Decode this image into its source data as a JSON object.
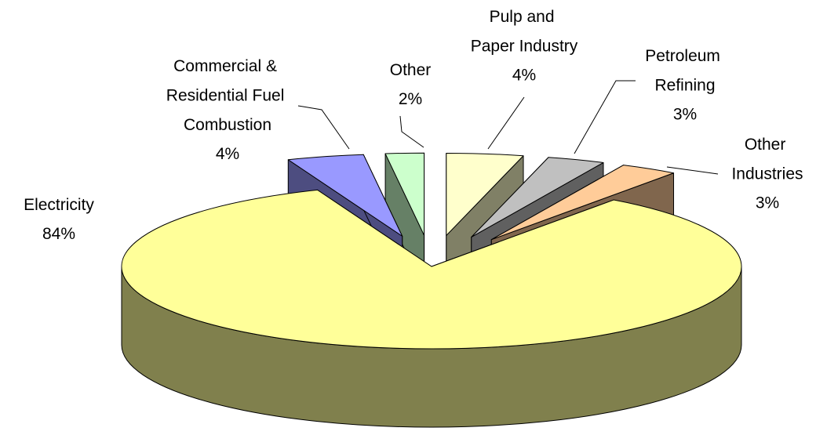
{
  "chart_data": {
    "type": "pie",
    "categories": [
      "Pulp and\nPaper Industry",
      "Petroleum\nRefining",
      "Other\nIndustries",
      "Electricity",
      "Commercial &\nResidential Fuel\nCombustion",
      "Other"
    ],
    "values": [
      4,
      3,
      3,
      84,
      4,
      2
    ],
    "value_labels": [
      "4%",
      "3%",
      "3%",
      "84%",
      "4%",
      "2%"
    ],
    "colors": [
      "#ffffcc",
      "#c0c0c0",
      "#ffcc99",
      "#ffff99",
      "#9999ff",
      "#ccffcc"
    ]
  }
}
